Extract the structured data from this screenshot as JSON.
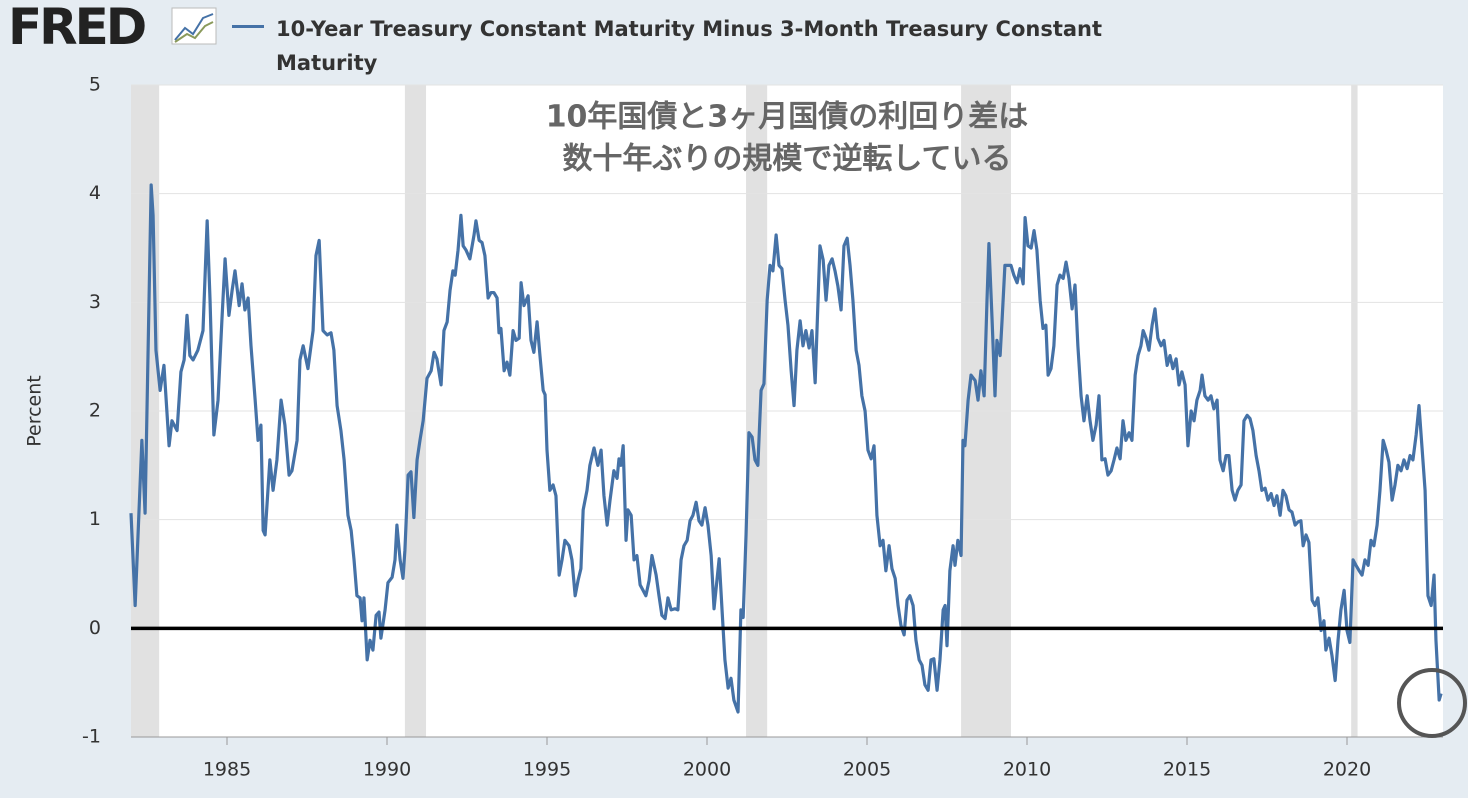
{
  "logo": "FRED",
  "chart_data": {
    "type": "line",
    "annotation": [
      "10年国債と3ヶ月国債の利回り差は",
      "数十年ぶりの規模で逆転している"
    ],
    "ylabel": "Percent",
    "xlim": [
      1982,
      2023
    ],
    "ylim": [
      -1,
      5
    ],
    "xticks": [
      1985,
      1990,
      1995,
      2000,
      2005,
      2010,
      2015,
      2020
    ],
    "yticks": [
      -1,
      0,
      1,
      2,
      3,
      4,
      5
    ],
    "grid": true,
    "hline": 0,
    "recession_color": "#e1e1e1",
    "recessions": [
      [
        1982.0,
        1982.88
      ],
      [
        1990.56,
        1991.22
      ],
      [
        2001.22,
        2001.88
      ],
      [
        2007.94,
        2009.5
      ],
      [
        2020.13,
        2020.33
      ]
    ],
    "x": [
      1982.0,
      1982.13,
      1982.34,
      1982.44,
      1982.63,
      1982.69,
      1982.78,
      1982.91,
      1983.03,
      1983.19,
      1983.28,
      1983.44,
      1983.56,
      1983.66,
      1983.75,
      1983.84,
      1983.94,
      1984.09,
      1984.25,
      1984.38,
      1984.47,
      1984.59,
      1984.72,
      1984.84,
      1984.94,
      1985.06,
      1985.16,
      1985.25,
      1985.38,
      1985.47,
      1985.56,
      1985.66,
      1985.75,
      1985.88,
      1985.97,
      1986.06,
      1986.13,
      1986.19,
      1986.34,
      1986.44,
      1986.56,
      1986.69,
      1986.81,
      1986.94,
      1987.03,
      1987.19,
      1987.28,
      1987.38,
      1987.53,
      1987.69,
      1987.78,
      1987.88,
      1988.0,
      1988.13,
      1988.25,
      1988.34,
      1988.44,
      1988.56,
      1988.66,
      1988.78,
      1988.88,
      1988.97,
      1989.06,
      1989.16,
      1989.22,
      1989.28,
      1989.38,
      1989.47,
      1989.56,
      1989.66,
      1989.75,
      1989.81,
      1989.94,
      1990.03,
      1990.16,
      1990.25,
      1990.31,
      1990.41,
      1990.5,
      1990.56,
      1990.66,
      1990.75,
      1990.84,
      1990.94,
      1991.03,
      1991.13,
      1991.25,
      1991.38,
      1991.47,
      1991.56,
      1991.69,
      1991.78,
      1991.88,
      1991.97,
      1992.06,
      1992.13,
      1992.22,
      1992.31,
      1992.38,
      1992.47,
      1992.59,
      1992.72,
      1992.78,
      1992.88,
      1992.97,
      1993.06,
      1993.16,
      1993.25,
      1993.34,
      1993.44,
      1993.5,
      1993.56,
      1993.66,
      1993.75,
      1993.84,
      1993.94,
      1994.03,
      1994.13,
      1994.19,
      1994.28,
      1994.41,
      1994.5,
      1994.59,
      1994.69,
      1994.78,
      1994.88,
      1994.94,
      1995.0,
      1995.09,
      1995.19,
      1995.28,
      1995.38,
      1995.47,
      1995.56,
      1995.69,
      1995.78,
      1995.88,
      1995.97,
      1996.06,
      1996.13,
      1996.25,
      1996.34,
      1996.47,
      1996.59,
      1996.69,
      1996.78,
      1996.88,
      1996.97,
      1997.09,
      1997.19,
      1997.25,
      1997.31,
      1997.38,
      1997.47,
      1997.53,
      1997.63,
      1997.72,
      1997.81,
      1997.91,
      1998.0,
      1998.09,
      1998.19,
      1998.28,
      1998.41,
      1998.5,
      1998.59,
      1998.69,
      1998.78,
      1998.88,
      1999.0,
      1999.09,
      1999.19,
      1999.28,
      1999.38,
      1999.47,
      1999.56,
      1999.66,
      1999.75,
      1999.84,
      1999.94,
      2000.03,
      2000.13,
      2000.22,
      2000.31,
      2000.38,
      2000.47,
      2000.56,
      2000.66,
      2000.75,
      2000.84,
      2000.97,
      2001.06,
      2001.13,
      2001.22,
      2001.31,
      2001.41,
      2001.5,
      2001.59,
      2001.69,
      2001.78,
      2001.88,
      2001.97,
      2002.06,
      2002.16,
      2002.25,
      2002.34,
      2002.44,
      2002.53,
      2002.63,
      2002.72,
      2002.81,
      2002.91,
      2003.0,
      2003.09,
      2003.19,
      2003.28,
      2003.38,
      2003.47,
      2003.53,
      2003.63,
      2003.72,
      2003.81,
      2003.91,
      2004.0,
      2004.09,
      2004.19,
      2004.28,
      2004.38,
      2004.47,
      2004.56,
      2004.66,
      2004.75,
      2004.84,
      2004.94,
      2005.03,
      2005.13,
      2005.22,
      2005.31,
      2005.41,
      2005.5,
      2005.59,
      2005.69,
      2005.78,
      2005.88,
      2005.97,
      2006.06,
      2006.16,
      2006.25,
      2006.34,
      2006.44,
      2006.53,
      2006.63,
      2006.72,
      2006.81,
      2006.91,
      2007.0,
      2007.09,
      2007.19,
      2007.28,
      2007.38,
      2007.44,
      2007.5,
      2007.59,
      2007.69,
      2007.75,
      2007.84,
      2007.94,
      2008.0,
      2008.06,
      2008.16,
      2008.25,
      2008.38,
      2008.47,
      2008.56,
      2008.66,
      2008.75,
      2008.81,
      2008.91,
      2009.0,
      2009.06,
      2009.16,
      2009.22,
      2009.31,
      2009.41,
      2009.5,
      2009.59,
      2009.69,
      2009.78,
      2009.88,
      2009.94,
      2010.03,
      2010.13,
      2010.22,
      2010.31,
      2010.41,
      2010.5,
      2010.59,
      2010.66,
      2010.75,
      2010.84,
      2010.94,
      2011.03,
      2011.13,
      2011.22,
      2011.31,
      2011.41,
      2011.5,
      2011.59,
      2011.69,
      2011.78,
      2011.88,
      2011.97,
      2012.06,
      2012.16,
      2012.25,
      2012.34,
      2012.44,
      2012.53,
      2012.63,
      2012.72,
      2012.81,
      2012.91,
      2013.0,
      2013.09,
      2013.19,
      2013.28,
      2013.38,
      2013.47,
      2013.56,
      2013.63,
      2013.72,
      2013.81,
      2013.91,
      2014.0,
      2014.09,
      2014.19,
      2014.28,
      2014.38,
      2014.47,
      2014.56,
      2014.66,
      2014.75,
      2014.84,
      2014.94,
      2015.03,
      2015.13,
      2015.22,
      2015.31,
      2015.41,
      2015.47,
      2015.56,
      2015.66,
      2015.75,
      2015.84,
      2015.94,
      2016.03,
      2016.13,
      2016.22,
      2016.31,
      2016.41,
      2016.5,
      2016.59,
      2016.69,
      2016.78,
      2016.88,
      2016.97,
      2017.06,
      2017.16,
      2017.25,
      2017.34,
      2017.44,
      2017.53,
      2017.63,
      2017.72,
      2017.81,
      2017.91,
      2018.0,
      2018.09,
      2018.19,
      2018.28,
      2018.38,
      2018.47,
      2018.56,
      2018.63,
      2018.72,
      2018.81,
      2018.91,
      2019.0,
      2019.09,
      2019.19,
      2019.28,
      2019.34,
      2019.44,
      2019.53,
      2019.63,
      2019.72,
      2019.81,
      2019.91,
      2020.0,
      2020.09,
      2020.19,
      2020.28,
      2020.38,
      2020.47,
      2020.56,
      2020.66,
      2020.75,
      2020.84,
      2020.94,
      2021.03,
      2021.13,
      2021.22,
      2021.31,
      2021.41,
      2021.5,
      2021.59,
      2021.69,
      2021.78,
      2021.88,
      2021.97,
      2022.06,
      2022.16,
      2022.25,
      2022.34,
      2022.44,
      2022.53,
      2022.63,
      2022.72,
      2022.78,
      2022.88,
      2022.94
    ],
    "series": [
      {
        "name": "10-Year Treasury Constant Maturity Minus 3-Month Treasury Constant Maturity",
        "color": "#4572a7",
        "values": [
          1.06,
          0.21,
          1.73,
          1.06,
          4.08,
          3.8,
          2.56,
          2.19,
          2.42,
          1.68,
          1.91,
          1.82,
          2.36,
          2.47,
          2.88,
          2.51,
          2.47,
          2.56,
          2.74,
          3.75,
          3.02,
          1.78,
          2.1,
          2.83,
          3.4,
          2.88,
          3.11,
          3.29,
          2.97,
          3.17,
          2.93,
          3.04,
          2.6,
          2.1,
          1.73,
          1.87,
          0.9,
          0.86,
          1.55,
          1.27,
          1.55,
          2.1,
          1.87,
          1.41,
          1.45,
          1.73,
          2.47,
          2.6,
          2.39,
          2.74,
          3.43,
          3.57,
          2.74,
          2.7,
          2.72,
          2.56,
          2.05,
          1.82,
          1.55,
          1.04,
          0.9,
          0.63,
          0.3,
          0.28,
          0.07,
          0.28,
          -0.29,
          -0.11,
          -0.2,
          0.12,
          0.15,
          -0.09,
          0.17,
          0.42,
          0.47,
          0.63,
          0.95,
          0.63,
          0.46,
          0.72,
          1.41,
          1.44,
          1.02,
          1.55,
          1.73,
          1.91,
          2.3,
          2.37,
          2.54,
          2.48,
          2.24,
          2.74,
          2.82,
          3.11,
          3.29,
          3.25,
          3.48,
          3.8,
          3.52,
          3.48,
          3.4,
          3.62,
          3.75,
          3.57,
          3.55,
          3.43,
          3.04,
          3.09,
          3.09,
          3.04,
          2.72,
          2.76,
          2.37,
          2.45,
          2.33,
          2.74,
          2.65,
          2.67,
          3.18,
          2.97,
          3.06,
          2.65,
          2.54,
          2.82,
          2.51,
          2.19,
          2.15,
          1.64,
          1.27,
          1.32,
          1.22,
          0.49,
          0.63,
          0.81,
          0.76,
          0.63,
          0.3,
          0.44,
          0.55,
          1.09,
          1.27,
          1.5,
          1.66,
          1.5,
          1.64,
          1.22,
          0.95,
          1.18,
          1.45,
          1.38,
          1.56,
          1.5,
          1.68,
          0.81,
          1.09,
          1.04,
          0.63,
          0.67,
          0.4,
          0.35,
          0.3,
          0.44,
          0.67,
          0.49,
          0.3,
          0.12,
          0.09,
          0.28,
          0.17,
          0.18,
          0.17,
          0.63,
          0.76,
          0.81,
          0.99,
          1.04,
          1.16,
          0.99,
          0.95,
          1.11,
          0.95,
          0.67,
          0.18,
          0.44,
          0.64,
          0.17,
          -0.29,
          -0.55,
          -0.46,
          -0.66,
          -0.77,
          0.17,
          0.1,
          0.86,
          1.8,
          1.76,
          1.55,
          1.5,
          2.19,
          2.25,
          3.02,
          3.34,
          3.29,
          3.62,
          3.34,
          3.31,
          3.02,
          2.79,
          2.37,
          2.05,
          2.56,
          2.83,
          2.6,
          2.74,
          2.58,
          2.74,
          2.26,
          3.02,
          3.52,
          3.39,
          3.02,
          3.34,
          3.4,
          3.29,
          3.15,
          2.93,
          3.52,
          3.59,
          3.34,
          3.02,
          2.56,
          2.42,
          2.14,
          2.0,
          1.64,
          1.56,
          1.68,
          1.04,
          0.76,
          0.81,
          0.53,
          0.76,
          0.55,
          0.46,
          0.21,
          0.03,
          -0.06,
          0.26,
          0.3,
          0.21,
          -0.11,
          -0.29,
          -0.34,
          -0.52,
          -0.57,
          -0.29,
          -0.28,
          -0.57,
          -0.29,
          0.17,
          0.21,
          -0.16,
          0.53,
          0.76,
          0.58,
          0.81,
          0.67,
          1.73,
          1.68,
          2.1,
          2.33,
          2.28,
          2.1,
          2.37,
          2.14,
          3.02,
          3.54,
          2.83,
          2.14,
          2.65,
          2.51,
          2.83,
          3.34,
          3.34,
          3.34,
          3.25,
          3.18,
          3.31,
          3.17,
          3.78,
          3.52,
          3.5,
          3.66,
          3.48,
          3.02,
          2.76,
          2.79,
          2.33,
          2.39,
          2.6,
          3.16,
          3.25,
          3.22,
          3.37,
          3.22,
          2.94,
          3.16,
          2.6,
          2.14,
          1.91,
          2.14,
          1.91,
          1.73,
          1.87,
          2.14,
          1.55,
          1.56,
          1.41,
          1.45,
          1.55,
          1.66,
          1.56,
          1.91,
          1.73,
          1.8,
          1.73,
          2.33,
          2.51,
          2.6,
          2.74,
          2.67,
          2.56,
          2.79,
          2.94,
          2.67,
          2.6,
          2.65,
          2.42,
          2.51,
          2.39,
          2.48,
          2.24,
          2.36,
          2.24,
          1.68,
          2.0,
          1.91,
          2.1,
          2.19,
          2.33,
          2.14,
          2.1,
          2.14,
          2.02,
          2.1,
          1.55,
          1.45,
          1.59,
          1.59,
          1.27,
          1.18,
          1.27,
          1.32,
          1.91,
          1.96,
          1.93,
          1.82,
          1.59,
          1.45,
          1.27,
          1.29,
          1.18,
          1.24,
          1.13,
          1.22,
          1.04,
          1.27,
          1.22,
          1.09,
          1.07,
          0.95,
          0.98,
          0.99,
          0.76,
          0.86,
          0.79,
          0.26,
          0.21,
          0.28,
          -0.02,
          0.07,
          -0.2,
          -0.09,
          -0.25,
          -0.48,
          -0.11,
          0.17,
          0.35,
          -0.02,
          -0.13,
          0.63,
          0.58,
          0.53,
          0.49,
          0.63,
          0.58,
          0.81,
          0.76,
          0.95,
          1.27,
          1.73,
          1.64,
          1.53,
          1.18,
          1.32,
          1.5,
          1.45,
          1.55,
          1.47,
          1.59,
          1.55,
          1.78,
          2.05,
          1.68,
          1.27,
          0.3,
          0.21,
          0.49,
          -0.11,
          -0.66,
          -0.6
        ]
      }
    ]
  }
}
